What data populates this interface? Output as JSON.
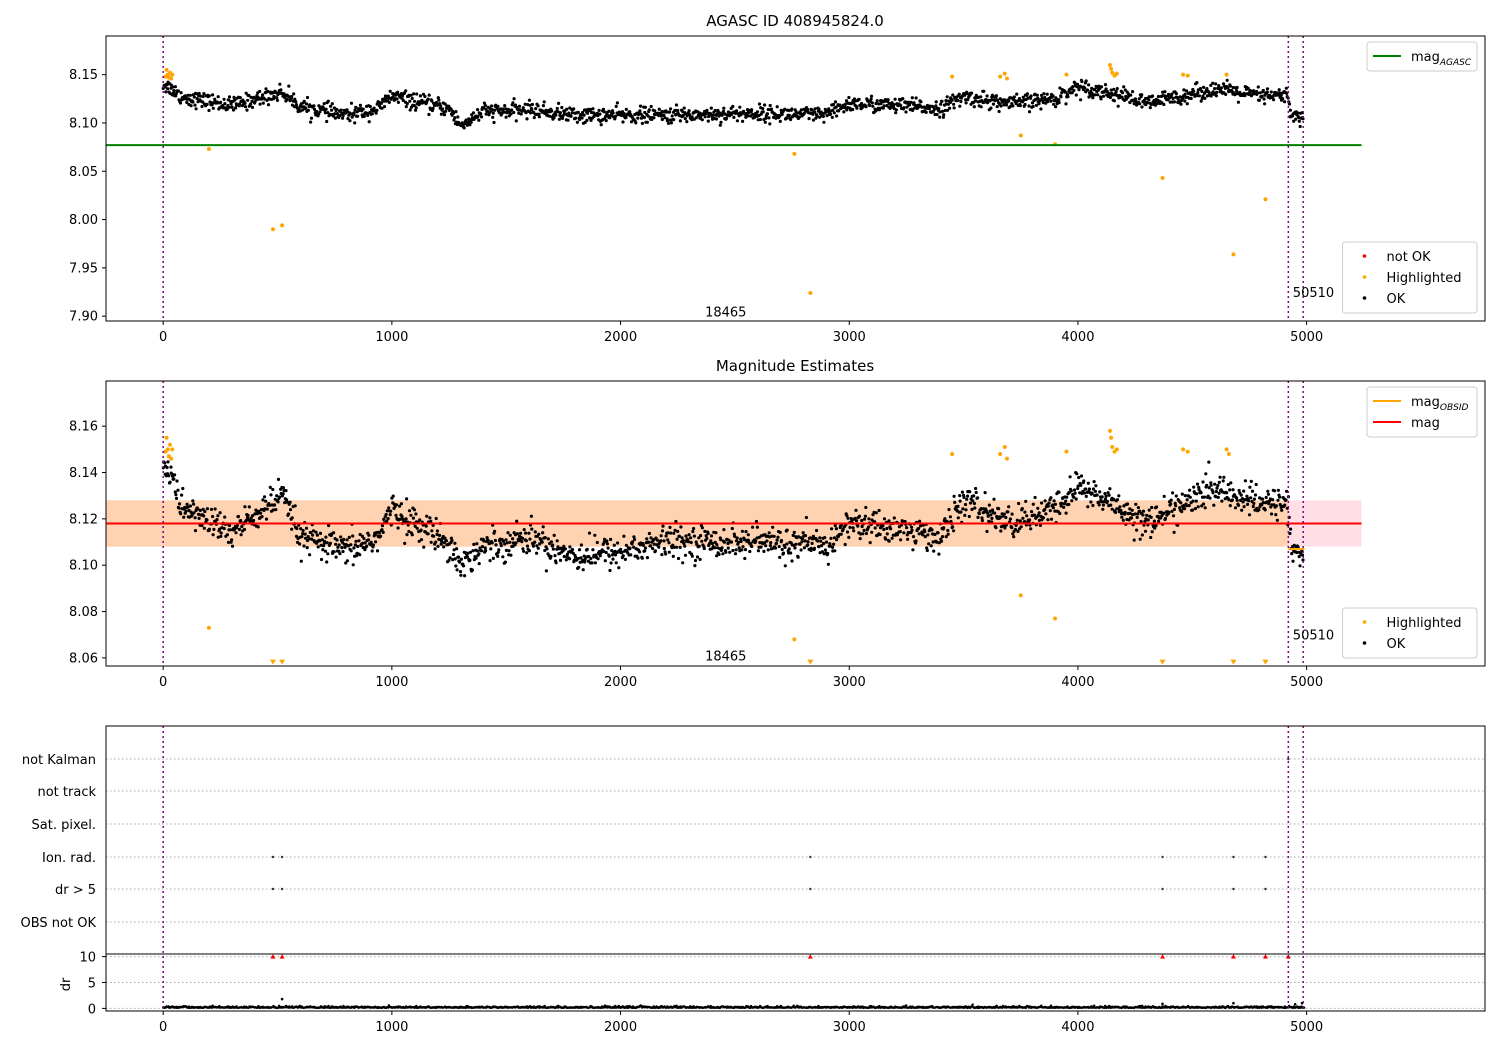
{
  "chart_data": [
    {
      "type": "scatter",
      "title": "AGASC ID 408945824.0",
      "xlim": [
        -250,
        5780
      ],
      "ylim": [
        7.895,
        8.19
      ],
      "xticks": [
        0,
        1000,
        2000,
        3000,
        4000,
        5000
      ],
      "yticks": [
        7.9,
        7.95,
        8.0,
        8.05,
        8.1,
        8.15
      ],
      "ytick_labels": [
        "7.90",
        "7.95",
        "8.00",
        "8.05",
        "8.10",
        "8.15"
      ],
      "vlines": [
        0,
        4920,
        4985
      ],
      "annotations": [
        {
          "text": "18465",
          "x": 2460,
          "y": 7.905
        },
        {
          "text": "50510",
          "x": 5030,
          "y": 7.925
        }
      ],
      "hline": {
        "name": "mag_AGASC",
        "y": 8.077,
        "x_range": [
          -250,
          5240
        ],
        "color": "#008000"
      },
      "legends": [
        {
          "position": "top-right",
          "entries": [
            {
              "label": "mag",
              "sub": "AGASC",
              "kind": "line",
              "color": "#008000"
            }
          ]
        },
        {
          "position": "lower-right",
          "entries": [
            {
              "label": "not OK",
              "kind": "dot",
              "color": "#ff0000"
            },
            {
              "label": "Highlighted",
              "kind": "dot",
              "color": "#ffa500"
            },
            {
              "label": "OK",
              "kind": "dot",
              "color": "#000000"
            }
          ]
        }
      ],
      "series": [
        {
          "name": "OK",
          "color": "#000000",
          "profile": [
            [
              0,
              8.14
            ],
            [
              40,
              8.135
            ],
            [
              80,
              8.127
            ],
            [
              300,
              8.118
            ],
            [
              520,
              8.132
            ],
            [
              600,
              8.117
            ],
            [
              800,
              8.108
            ],
            [
              940,
              8.115
            ],
            [
              1000,
              8.128
            ],
            [
              1100,
              8.122
            ],
            [
              1250,
              8.115
            ],
            [
              1300,
              8.097
            ],
            [
              1400,
              8.112
            ],
            [
              1500,
              8.112
            ],
            [
              1600,
              8.114
            ],
            [
              1800,
              8.108
            ],
            [
              2000,
              8.108
            ],
            [
              2200,
              8.108
            ],
            [
              2600,
              8.11
            ],
            [
              2900,
              8.108
            ],
            [
              3000,
              8.12
            ],
            [
              3200,
              8.118
            ],
            [
              3400,
              8.115
            ],
            [
              3500,
              8.127
            ],
            [
              3700,
              8.12
            ],
            [
              3900,
              8.125
            ],
            [
              4000,
              8.138
            ],
            [
              4200,
              8.128
            ],
            [
              4300,
              8.12
            ],
            [
              4450,
              8.128
            ],
            [
              4600,
              8.135
            ],
            [
              4800,
              8.128
            ],
            [
              4920,
              8.128
            ],
            [
              4930,
              8.108
            ],
            [
              4985,
              8.105
            ]
          ],
          "noise": 0.009,
          "n": 1800
        },
        {
          "name": "Highlighted",
          "color": "#ffa500",
          "x": [
            10,
            15,
            20,
            25,
            30,
            35,
            40,
            200,
            480,
            520,
            2760,
            2830,
            3450,
            3660,
            3680,
            3690,
            3750,
            3900,
            3950,
            4140,
            4145,
            4150,
            4160,
            4170,
            4370,
            4460,
            4480,
            4650,
            4680,
            4820
          ],
          "y": [
            8.148,
            8.155,
            8.15,
            8.147,
            8.152,
            8.146,
            8.15,
            8.073,
            7.99,
            7.994,
            8.068,
            7.924,
            8.148,
            8.148,
            8.151,
            8.146,
            8.087,
            8.078,
            8.15,
            8.16,
            8.156,
            8.152,
            8.149,
            8.151,
            8.043,
            8.15,
            8.149,
            8.15,
            7.964,
            8.021
          ]
        }
      ]
    },
    {
      "type": "scatter",
      "title": "Magnitude Estimates",
      "xlim": [
        -250,
        5780
      ],
      "ylim": [
        8.0565,
        8.1795
      ],
      "xticks": [
        0,
        1000,
        2000,
        3000,
        4000,
        5000
      ],
      "yticks": [
        8.06,
        8.08,
        8.1,
        8.12,
        8.14,
        8.16
      ],
      "ytick_labels": [
        "8.06",
        "8.08",
        "8.10",
        "8.12",
        "8.14",
        "8.16"
      ],
      "vlines": [
        0,
        4920,
        4985
      ],
      "annotations": [
        {
          "text": "18465",
          "x": 2460,
          "y": 8.061
        },
        {
          "text": "50510",
          "x": 5030,
          "y": 8.07
        }
      ],
      "mag_line": {
        "name": "mag",
        "y": 8.118,
        "x_range": [
          -250,
          5240
        ],
        "color": "#ff0000"
      },
      "bands": [
        {
          "y0": 8.108,
          "y1": 8.128,
          "x_range": [
            -250,
            5240
          ],
          "color": "#ffc0cb",
          "opacity": 0.5
        },
        {
          "y0": 8.108,
          "y1": 8.128,
          "x_range": [
            -250,
            4920
          ],
          "color": "#ffa500",
          "opacity": 0.22
        }
      ],
      "obsid_segments": [
        {
          "x_range": [
            -250,
            4920
          ],
          "y": 8.118,
          "color": "#ffa500"
        },
        {
          "x_range": [
            4920,
            4990
          ],
          "y": 8.107,
          "color": "#ffa500"
        }
      ],
      "legends": [
        {
          "position": "top-right",
          "entries": [
            {
              "label": "mag",
              "sub": "OBSID",
              "kind": "line",
              "color": "#ffa500"
            },
            {
              "label": "mag",
              "kind": "line",
              "color": "#ff0000"
            }
          ]
        },
        {
          "position": "lower-right",
          "entries": [
            {
              "label": "Highlighted",
              "kind": "dot",
              "color": "#ffa500"
            },
            {
              "label": "OK",
              "kind": "dot",
              "color": "#000000"
            }
          ]
        }
      ],
      "series": [
        {
          "name": "OK",
          "color": "#000000",
          "profile": [
            [
              0,
              8.145
            ],
            [
              40,
              8.137
            ],
            [
              80,
              8.125
            ],
            [
              300,
              8.114
            ],
            [
              520,
              8.13
            ],
            [
              600,
              8.112
            ],
            [
              800,
              8.106
            ],
            [
              940,
              8.112
            ],
            [
              1000,
              8.124
            ],
            [
              1100,
              8.118
            ],
            [
              1250,
              8.11
            ],
            [
              1300,
              8.1
            ],
            [
              1400,
              8.108
            ],
            [
              1500,
              8.11
            ],
            [
              1600,
              8.112
            ],
            [
              1800,
              8.104
            ],
            [
              2000,
              8.106
            ],
            [
              2200,
              8.11
            ],
            [
              2600,
              8.11
            ],
            [
              2900,
              8.108
            ],
            [
              3000,
              8.118
            ],
            [
              3200,
              8.116
            ],
            [
              3400,
              8.112
            ],
            [
              3500,
              8.128
            ],
            [
              3700,
              8.118
            ],
            [
              3900,
              8.124
            ],
            [
              4000,
              8.134
            ],
            [
              4200,
              8.124
            ],
            [
              4300,
              8.118
            ],
            [
              4450,
              8.126
            ],
            [
              4600,
              8.133
            ],
            [
              4800,
              8.126
            ],
            [
              4920,
              8.128
            ],
            [
              4930,
              8.108
            ],
            [
              4985,
              8.104
            ]
          ],
          "noise": 0.0075,
          "n": 1800
        },
        {
          "name": "Highlighted",
          "color": "#ffa500",
          "x": [
            10,
            15,
            20,
            25,
            30,
            35,
            40,
            200,
            2760,
            3450,
            3660,
            3680,
            3690,
            3750,
            3900,
            3950,
            4140,
            4145,
            4150,
            4160,
            4170,
            4460,
            4480,
            4650,
            4660
          ],
          "y": [
            8.149,
            8.155,
            8.15,
            8.147,
            8.152,
            8.146,
            8.15,
            8.073,
            8.068,
            8.148,
            8.148,
            8.151,
            8.146,
            8.087,
            8.077,
            8.149,
            8.158,
            8.155,
            8.151,
            8.149,
            8.15,
            8.15,
            8.149,
            8.15,
            8.148
          ]
        },
        {
          "name": "Highlighted (clipped)",
          "color": "#ffa500",
          "marker": "triangle-down",
          "x": [
            480,
            520,
            2830,
            4370,
            4680,
            4820
          ],
          "y": [
            8.0575,
            8.0575,
            8.0575,
            8.0575,
            8.0575,
            8.0575
          ]
        }
      ]
    },
    {
      "type": "scatter",
      "title": "",
      "xlim": [
        -250,
        5780
      ],
      "xticks": [
        0,
        1000,
        2000,
        3000,
        4000,
        5000
      ],
      "vlines": [
        0,
        4920,
        4985
      ],
      "flag_rows": [
        "not Kalman",
        "not track",
        "Sat. pixel.",
        "Ion. rad.",
        "dr > 5",
        "OBS not OK"
      ],
      "flags": {
        "not Kalman": [
          4920
        ],
        "not track": [],
        "Sat. pixel.": [],
        "Ion. rad.": [
          480,
          520,
          2830,
          4370,
          4680,
          4820
        ],
        "dr > 5": [
          480,
          520,
          2830,
          4370,
          4680,
          4820
        ],
        "OBS not OK": []
      },
      "dr_panel": {
        "ylabel": "dr",
        "yticks": [
          0,
          5,
          10
        ],
        "ylim": [
          -0.5,
          10.5
        ],
        "capped": {
          "x": [
            480,
            520,
            2830,
            4370,
            4680,
            4820,
            4920
          ],
          "y": 10,
          "color": "#ff0000"
        },
        "points": {
          "x": [
            520,
            4370,
            4680,
            4950,
            4980
          ],
          "y": [
            1.8,
            0.9,
            1.0,
            0.8,
            1.0
          ]
        }
      }
    }
  ]
}
